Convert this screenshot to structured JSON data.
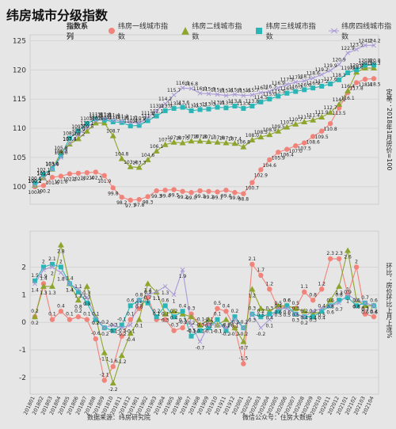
{
  "header": {
    "title": "纬房城市分级指数",
    "legend_title": "指数系列"
  },
  "notes": {
    "upper_axis": "定基：2018年1月房价=100",
    "lower_axis": "环比：房价环比上月上涨%"
  },
  "footer": {
    "source": "数据来源：纬房研究院",
    "wechat": "微信公众号：住房大数据"
  },
  "colors": {
    "tier1": "#f2837a",
    "tier2": "#8da52c",
    "tier3": "#2ab6b6",
    "tier4": "#a99ad6"
  },
  "chart_data": [
    {
      "type": "line",
      "ylim": [
        97,
        126
      ],
      "yticks": [
        100,
        105,
        110,
        115,
        120,
        125
      ],
      "grid": "horizontal",
      "legend": "top",
      "x": [
        "201801",
        "201802",
        "201803",
        "201804",
        "201805",
        "201806",
        "201807",
        "201808",
        "201809",
        "201810",
        "201811",
        "201812",
        "201901",
        "201902",
        "201903",
        "201904",
        "201905",
        "201906",
        "201907",
        "201908",
        "201909",
        "201910",
        "201911",
        "201912",
        "202001",
        "202002",
        "202003",
        "202004",
        "202005",
        "202006",
        "202007",
        "202008",
        "202009",
        "202010",
        "202011",
        "202012",
        "202101",
        "202102",
        "202103",
        "202104"
      ],
      "series": [
        {
          "name": "纬房一线城市指数",
          "marker": "circle",
          "color": "#f2837a",
          "values": [
            100.0,
            100.2,
            101.6,
            101.8,
            102.2,
            102.3,
            102.4,
            102.5,
            101.9,
            99.8,
            98.2,
            97.7,
            97.8,
            98.3,
            99.3,
            99.4,
            99.5,
            99.2,
            99.0,
            99.3,
            99.2,
            99.1,
            99.4,
            99.0,
            98.8,
            100.7,
            102.9,
            104.6,
            105.9,
            106.4,
            107.0,
            107.5,
            108.6,
            109.5,
            110.8,
            113.5,
            116.1,
            117.8,
            118.4,
            118.5
          ]
        },
        {
          "name": "纬房二线城市指数",
          "marker": "triangle",
          "color": "#8da52c",
          "values": [
            100.2,
            101.5,
            103.0,
            105.8,
            107.3,
            108.2,
            109.5,
            110.9,
            110.9,
            108.7,
            104.8,
            103.4,
            103.3,
            104.6,
            106.1,
            107.2,
            107.6,
            107.5,
            107.8,
            107.8,
            107.7,
            107.6,
            107.5,
            107.4,
            106.8,
            108.0,
            108.5,
            108.9,
            109.5,
            110.2,
            110.7,
            111.1,
            111.4,
            111.9,
            112.7,
            114.1,
            116.4,
            119.6,
            120.3,
            120.3
          ]
        },
        {
          "name": "纬房三线城市指数",
          "marker": "square",
          "color": "#2ab6b6",
          "values": [
            100.6,
            102.1,
            103.1,
            105.3,
            108.3,
            109.5,
            110.8,
            111.6,
            111.4,
            111.1,
            111.0,
            110.4,
            110.5,
            111.3,
            112.1,
            113.0,
            113.4,
            113.6,
            113.0,
            113.2,
            113.3,
            113.6,
            113.5,
            113.8,
            113.4,
            113.8,
            114.5,
            115.0,
            115.5,
            116.0,
            116.3,
            116.6,
            116.9,
            117.2,
            117.6,
            118.3,
            119.5,
            120.0,
            120.8,
            120.8
          ]
        },
        {
          "name": "纬房四线城市指数",
          "marker": "cross",
          "color": "#a99ad6",
          "values": [
            100.1,
            101.4,
            103.0,
            105.0,
            107.4,
            108.9,
            110.1,
            111.3,
            111.6,
            111.4,
            111.2,
            111.0,
            110.9,
            111.8,
            113.0,
            114.2,
            115.7,
            116.9,
            116.8,
            116.0,
            115.9,
            115.8,
            115.6,
            115.8,
            115.6,
            115.7,
            116.1,
            116.3,
            116.9,
            117.5,
            117.9,
            118.1,
            118.6,
            119.2,
            119.9,
            120.9,
            122.9,
            123.5,
            124.2,
            124.2
          ]
        }
      ]
    },
    {
      "type": "line",
      "ylim": [
        -2.6,
        3.3
      ],
      "yticks": [
        -2,
        -1,
        0,
        1,
        2
      ],
      "grid": "horizontal",
      "x": [
        "201801",
        "201802",
        "201803",
        "201804",
        "201805",
        "201806",
        "201807",
        "201808",
        "201809",
        "201810",
        "201811",
        "201812",
        "201901",
        "201902",
        "201903",
        "201904",
        "201905",
        "201906",
        "201907",
        "201908",
        "201909",
        "201910",
        "201911",
        "201912",
        "202001",
        "202002",
        "202003",
        "202004",
        "202005",
        "202006",
        "202007",
        "202008",
        "202009",
        "202010",
        "202011",
        "202012",
        "202101",
        "202102",
        "202103",
        "202104"
      ],
      "series": [
        {
          "name": "纬房一线城市指数",
          "marker": "circle",
          "color": "#f2837a",
          "values": [
            0.2,
            1.4,
            0.1,
            0.4,
            0.1,
            0.2,
            0.1,
            -0.6,
            -2.1,
            -1.6,
            -0.5,
            0.1,
            0.5,
            0.9,
            0.1,
            0.1,
            -0.3,
            -0.2,
            0.3,
            -0.1,
            -0.1,
            0.5,
            0.4,
            -0.2,
            -1.5,
            2.1,
            1.7,
            1.2,
            0.5,
            0.6,
            0.5,
            1.1,
            0.8,
            1.2,
            2.3,
            2.3,
            1.0,
            2.0,
            0.3,
            0.2
          ]
        },
        {
          "name": "纬房二线城市指数",
          "marker": "triangle",
          "color": "#8da52c",
          "values": [
            0.2,
            1.3,
            1.3,
            2.8,
            1.4,
            0.8,
            1.3,
            0.2,
            -1.1,
            -2.2,
            -1.2,
            -0.4,
            0.1,
            1.4,
            1.1,
            0.3,
            0.4,
            0.3,
            0.2,
            -0.1,
            0.1,
            -0.1,
            0.1,
            -0.2,
            -0.7,
            1.2,
            0.5,
            0.4,
            0.6,
            0.6,
            0.5,
            0.4,
            0.3,
            0.4,
            0.8,
            1.3,
            2.6,
            0.8,
            0.6,
            0.6
          ]
        },
        {
          "name": "纬房三线城市指数",
          "marker": "square",
          "color": "#2ab6b6",
          "values": [
            1.5,
            2.0,
            2.1,
            2.0,
            1.4,
            1.1,
            0.7,
            0.1,
            -0.2,
            -0.3,
            -0.1,
            0.6,
            0.8,
            0.7,
            0.2,
            0.6,
            0.2,
            0.4,
            -0.5,
            -0.3,
            -0.2,
            0.1,
            -0.3,
            0.2,
            -0.2,
            0.3,
            0.2,
            0.3,
            0.4,
            0.6,
            0.3,
            0.2,
            0.2,
            0.4,
            0.6,
            0.8,
            0.9,
            0.6,
            0.7,
            0.6
          ]
        },
        {
          "name": "纬房四线城市指数",
          "marker": "cross",
          "color": "#a99ad6",
          "values": [
            1.4,
            1.9,
            2.0,
            1.8,
            1.4,
            1.2,
            0.9,
            0.2,
            -0.2,
            -0.1,
            -0.2,
            -0.1,
            0.8,
            1.0,
            1.1,
            1.3,
            1.0,
            1.9,
            -0.1,
            -0.7,
            -0.1,
            -0.1,
            -0.2,
            0.1,
            -0.2,
            0.3,
            -0.2,
            0.1,
            0.5,
            0.5,
            0.3,
            0.2,
            0.4,
            0.5,
            0.6,
            0.7,
            1.0,
            0.8,
            0.7,
            0.6
          ]
        }
      ]
    }
  ]
}
